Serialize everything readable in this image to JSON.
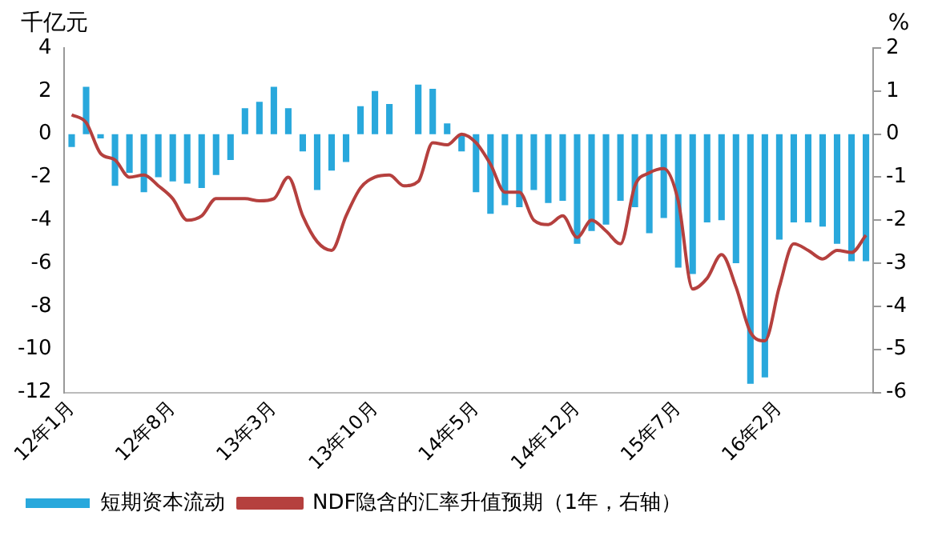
{
  "chart_data": {
    "type": "bar",
    "categories": [
      "12年1月",
      null,
      null,
      null,
      null,
      null,
      null,
      "12年8月",
      null,
      null,
      null,
      null,
      null,
      null,
      "13年3月",
      null,
      null,
      null,
      null,
      null,
      null,
      "13年10月",
      null,
      null,
      null,
      null,
      null,
      null,
      "14年5月",
      null,
      null,
      null,
      null,
      null,
      null,
      "14年12月",
      null,
      null,
      null,
      null,
      null,
      null,
      "15年7月",
      null,
      null,
      null,
      null,
      null,
      null,
      "16年2月",
      null,
      null,
      null,
      null,
      null,
      null
    ],
    "series": [
      {
        "name": "短期资本流动",
        "color": "#29a8dc",
        "values": [
          -0.6,
          2.2,
          -0.2,
          -2.4,
          -1.8,
          -2.7,
          -2.0,
          -2.2,
          -2.3,
          -2.5,
          -1.9,
          -1.2,
          1.2,
          1.5,
          2.2,
          1.2,
          -0.8,
          -2.6,
          -1.7,
          -1.3,
          1.3,
          2.0,
          1.4,
          0,
          2.3,
          2.1,
          0.5,
          -0.8,
          -2.7,
          -3.7,
          -3.3,
          -3.4,
          -2.6,
          -3.2,
          -3.1,
          -5.1,
          -4.5,
          -4.2,
          -3.1,
          -3.4,
          -4.6,
          -3.9,
          -6.2,
          -6.5,
          -4.1,
          -4.0,
          -6.0,
          -11.6,
          -11.3,
          -4.9,
          -4.1,
          -4.1,
          -4.3,
          -5.1,
          -5.9,
          -5.9
        ]
      },
      {
        "name": "NDF隐含的汇率升值预期（1年，右轴）",
        "type": "line",
        "axis": "y2",
        "color": "#b5403e",
        "values": [
          0.45,
          0.27,
          -0.45,
          -0.6,
          -1.0,
          -0.95,
          -1.2,
          -1.5,
          -2.0,
          -1.9,
          -1.5,
          -1.5,
          -1.5,
          -1.55,
          -1.5,
          -1.0,
          -1.9,
          -2.5,
          -2.7,
          -1.9,
          -1.25,
          -1.0,
          -0.95,
          -1.2,
          -1.1,
          -0.2,
          -0.25,
          0.0,
          -0.2,
          -0.7,
          -1.35,
          -1.35,
          -2.0,
          -2.1,
          -1.9,
          -2.4,
          -2.0,
          -2.25,
          -2.55,
          -1.2,
          -0.9,
          -0.8,
          -1.55,
          -3.6,
          -3.35,
          -2.8,
          -3.55,
          -4.6,
          -4.8,
          -3.55,
          -2.55,
          -2.7,
          -2.9,
          -2.7,
          -2.75,
          -2.35
        ]
      }
    ],
    "ylabel": "千亿元",
    "y2label": "%",
    "ylim": [
      -12,
      4
    ],
    "yticks": [
      -12,
      -10,
      -8,
      -6,
      -4,
      -2,
      0,
      2,
      4
    ],
    "y2lim": [
      -6,
      2
    ],
    "y2ticks": [
      -6,
      -5,
      -4,
      -3,
      -2,
      -1,
      0,
      1,
      2
    ],
    "grid": false,
    "legend": "bottom",
    "marker": "none",
    "line_style": "solid"
  }
}
